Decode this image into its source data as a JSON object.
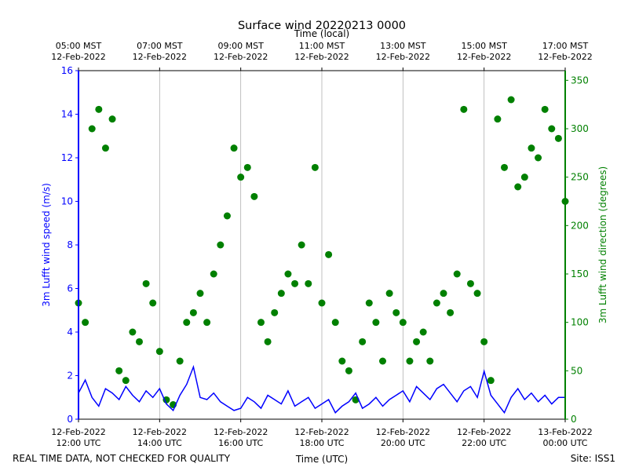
{
  "chart_data": {
    "type": "line_scatter",
    "title": "Surface wind 20220213 0000",
    "top_axis_label": "Time (local)",
    "xlabel": "Time (UTC)",
    "ylabel": "3m Lufft wind speed (m/s)",
    "y2label": "3m Lufft wind direction (degrees)",
    "footer_left": "REAL TIME DATA, NOT CHECKED FOR QUALITY",
    "footer_right": "Site: ISS1",
    "grid": true,
    "xlim": [
      "2022-02-12T12:00",
      "2022-02-13T00:00"
    ],
    "xticks": [
      {
        "value": "2022-02-12T12:00",
        "label": [
          "12-Feb-2022",
          "12:00 UTC"
        ]
      },
      {
        "value": "2022-02-12T14:00",
        "label": [
          "12-Feb-2022",
          "14:00 UTC"
        ]
      },
      {
        "value": "2022-02-12T16:00",
        "label": [
          "12-Feb-2022",
          "16:00 UTC"
        ]
      },
      {
        "value": "2022-02-12T18:00",
        "label": [
          "12-Feb-2022",
          "18:00 UTC"
        ]
      },
      {
        "value": "2022-02-12T20:00",
        "label": [
          "12-Feb-2022",
          "20:00 UTC"
        ]
      },
      {
        "value": "2022-02-12T22:00",
        "label": [
          "12-Feb-2022",
          "22:00 UTC"
        ]
      },
      {
        "value": "2022-02-13T00:00",
        "label": [
          "13-Feb-2022",
          "00:00 UTC"
        ]
      }
    ],
    "top_xticks": [
      {
        "value": "2022-02-12T12:00",
        "label": [
          "05:00 MST",
          "12-Feb-2022"
        ]
      },
      {
        "value": "2022-02-12T14:00",
        "label": [
          "07:00 MST",
          "12-Feb-2022"
        ]
      },
      {
        "value": "2022-02-12T16:00",
        "label": [
          "09:00 MST",
          "12-Feb-2022"
        ]
      },
      {
        "value": "2022-02-12T18:00",
        "label": [
          "11:00 MST",
          "12-Feb-2022"
        ]
      },
      {
        "value": "2022-02-12T20:00",
        "label": [
          "13:00 MST",
          "12-Feb-2022"
        ]
      },
      {
        "value": "2022-02-12T22:00",
        "label": [
          "15:00 MST",
          "12-Feb-2022"
        ]
      },
      {
        "value": "2022-02-13T00:00",
        "label": [
          "17:00 MST",
          "12-Feb-2022"
        ]
      }
    ],
    "ylim": [
      0,
      16
    ],
    "yticks": [
      0,
      2,
      4,
      6,
      8,
      10,
      12,
      14,
      16
    ],
    "y2lim": [
      0,
      360
    ],
    "y2ticks": [
      0,
      50,
      100,
      150,
      200,
      250,
      300,
      350
    ],
    "x": [
      "2022-02-12T12:00",
      "2022-02-12T12:10",
      "2022-02-12T12:20",
      "2022-02-12T12:30",
      "2022-02-12T12:40",
      "2022-02-12T12:50",
      "2022-02-12T13:00",
      "2022-02-12T13:10",
      "2022-02-12T13:20",
      "2022-02-12T13:30",
      "2022-02-12T13:40",
      "2022-02-12T13:50",
      "2022-02-12T14:00",
      "2022-02-12T14:10",
      "2022-02-12T14:20",
      "2022-02-12T14:30",
      "2022-02-12T14:40",
      "2022-02-12T14:50",
      "2022-02-12T15:00",
      "2022-02-12T15:10",
      "2022-02-12T15:20",
      "2022-02-12T15:30",
      "2022-02-12T15:40",
      "2022-02-12T15:50",
      "2022-02-12T16:00",
      "2022-02-12T16:10",
      "2022-02-12T16:20",
      "2022-02-12T16:30",
      "2022-02-12T16:40",
      "2022-02-12T16:50",
      "2022-02-12T17:00",
      "2022-02-12T17:10",
      "2022-02-12T17:20",
      "2022-02-12T17:30",
      "2022-02-12T17:40",
      "2022-02-12T17:50",
      "2022-02-12T18:00",
      "2022-02-12T18:10",
      "2022-02-12T18:20",
      "2022-02-12T18:30",
      "2022-02-12T18:40",
      "2022-02-12T18:50",
      "2022-02-12T19:00",
      "2022-02-12T19:10",
      "2022-02-12T19:20",
      "2022-02-12T19:30",
      "2022-02-12T19:40",
      "2022-02-12T19:50",
      "2022-02-12T20:00",
      "2022-02-12T20:10",
      "2022-02-12T20:20",
      "2022-02-12T20:30",
      "2022-02-12T20:40",
      "2022-02-12T20:50",
      "2022-02-12T21:00",
      "2022-02-12T21:10",
      "2022-02-12T21:20",
      "2022-02-12T21:30",
      "2022-02-12T21:40",
      "2022-02-12T21:50",
      "2022-02-12T22:00",
      "2022-02-12T22:10",
      "2022-02-12T22:20",
      "2022-02-12T22:30",
      "2022-02-12T22:40",
      "2022-02-12T22:50",
      "2022-02-12T23:00",
      "2022-02-12T23:10",
      "2022-02-12T23:20",
      "2022-02-12T23:30",
      "2022-02-12T23:40",
      "2022-02-12T23:50",
      "2022-02-13T00:00"
    ],
    "series": [
      {
        "name": "3m Lufft wind speed (m/s)",
        "type": "line",
        "axis": "y",
        "color": "#0000ff",
        "values": [
          1.2,
          1.8,
          1.0,
          0.6,
          1.4,
          1.2,
          0.9,
          1.5,
          1.1,
          0.8,
          1.3,
          1.0,
          1.4,
          0.7,
          0.4,
          1.1,
          1.6,
          2.4,
          1.0,
          0.9,
          1.2,
          0.8,
          0.6,
          0.4,
          0.5,
          1.0,
          0.8,
          0.5,
          1.1,
          0.9,
          0.7,
          1.3,
          0.6,
          0.8,
          1.0,
          0.5,
          0.7,
          0.9,
          0.3,
          0.6,
          0.8,
          1.2,
          0.5,
          0.7,
          1.0,
          0.6,
          0.9,
          1.1,
          1.3,
          0.8,
          1.5,
          1.2,
          0.9,
          1.4,
          1.6,
          1.2,
          0.8,
          1.3,
          1.5,
          1.0,
          2.2,
          1.1,
          0.7,
          0.3,
          1.0,
          1.4,
          0.9,
          1.2,
          0.8,
          1.1,
          0.7,
          1.0,
          1.0
        ]
      },
      {
        "name": "3m Lufft wind direction (degrees)",
        "type": "scatter",
        "axis": "y2",
        "color": "#008000",
        "values": [
          120,
          100,
          300,
          320,
          280,
          310,
          50,
          40,
          90,
          80,
          140,
          120,
          70,
          20,
          15,
          60,
          100,
          110,
          130,
          100,
          150,
          180,
          210,
          280,
          250,
          260,
          230,
          100,
          80,
          110,
          130,
          150,
          140,
          180,
          140,
          260,
          120,
          170,
          100,
          60,
          50,
          20,
          80,
          120,
          100,
          60,
          130,
          110,
          100,
          60,
          80,
          90,
          60,
          120,
          130,
          110,
          150,
          320,
          140,
          130,
          80,
          40,
          310,
          260,
          330,
          240,
          250,
          280,
          270,
          320,
          300,
          290,
          225
        ]
      }
    ]
  }
}
